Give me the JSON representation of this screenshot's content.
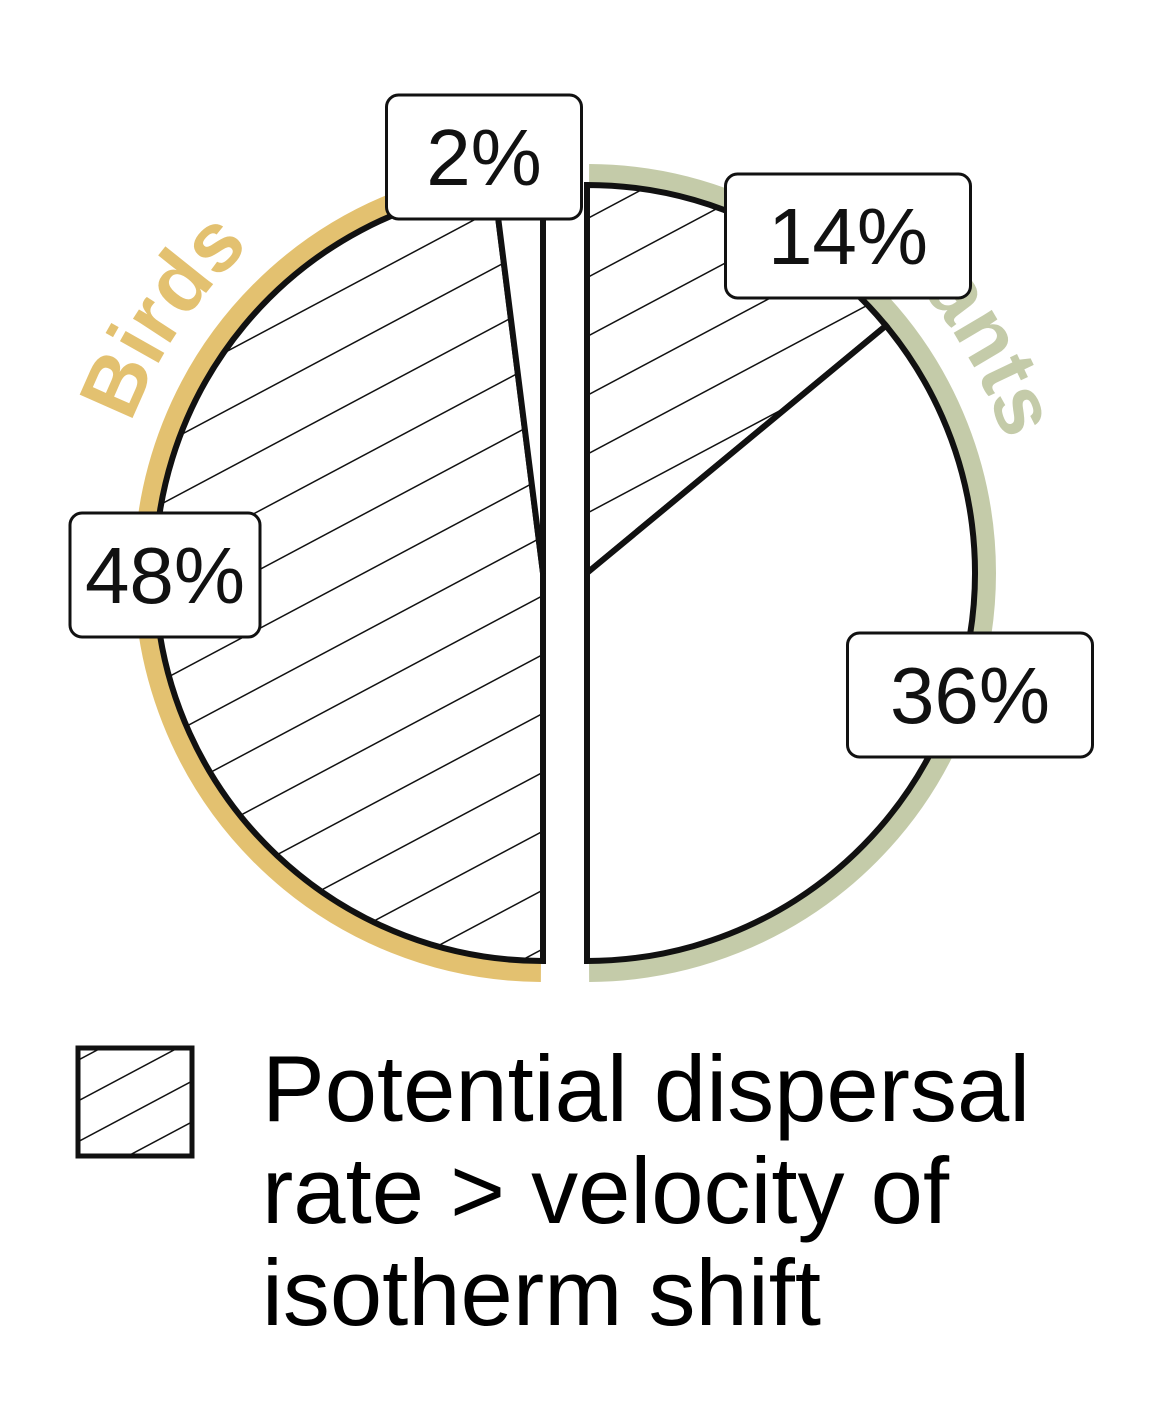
{
  "chart_data": {
    "type": "pie",
    "groups": [
      {
        "name": "Birds",
        "color": "#e3c170",
        "slices": [
          {
            "label": "48%",
            "value": 48,
            "pattern": "hatched"
          },
          {
            "label": "2%",
            "value": 2,
            "pattern": "none"
          }
        ]
      },
      {
        "name": "Plants",
        "color": "#c4cba9",
        "slices": [
          {
            "label": "14%",
            "value": 14,
            "pattern": "hatched"
          },
          {
            "label": "36%",
            "value": 36,
            "pattern": "none"
          }
        ]
      }
    ],
    "legend": {
      "placement": "bottom",
      "pattern": "hatched",
      "lines": [
        "Potential dispersal",
        "rate > velocity of",
        "isotherm shift"
      ]
    }
  }
}
